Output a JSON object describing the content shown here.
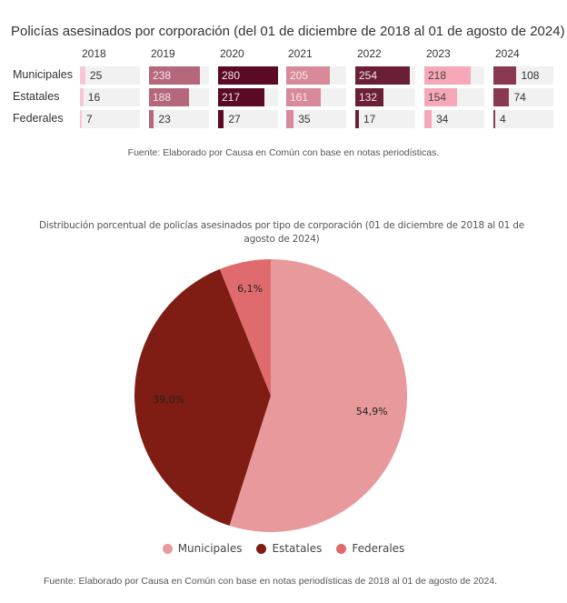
{
  "chart_data": [
    {
      "type": "table",
      "title": "Policías asesinados por corporación (del 01 de diciembre de 2018 al 01 de agosto de 2024)",
      "columns": [
        "2018",
        "2019",
        "2020",
        "2021",
        "2022",
        "2023",
        "2024"
      ],
      "rows": [
        "Municipales",
        "Estatales",
        "Federales"
      ],
      "values": [
        [
          25,
          238,
          280,
          205,
          254,
          218,
          108
        ],
        [
          16,
          188,
          217,
          161,
          132,
          154,
          74
        ],
        [
          7,
          23,
          27,
          35,
          17,
          34,
          4
        ]
      ],
      "column_colors": [
        "#f9c6d6",
        "#b5687c",
        "#5a0a25",
        "#d98a9a",
        "#6b1f36",
        "#f7a8b8",
        "#8a3a50"
      ],
      "value_max": 280,
      "source": "Fuente: Elaborado por Causa en Común con base en notas periodísticas."
    },
    {
      "type": "pie",
      "title": "Distribución porcentual de policías asesinados por tipo de corporación (01 de diciembre de 2018 al 01 de agosto de 2024)",
      "labels": [
        "Municipales",
        "Estatales",
        "Federales"
      ],
      "values": [
        54.9,
        39.0,
        6.1
      ],
      "data_labels": [
        "54,9%",
        "39,0%",
        "6,1%"
      ],
      "colors": [
        "#e8999b",
        "#7f1d14",
        "#e06b6e"
      ],
      "legend_position": "bottom",
      "source": "Fuente: Elaborado por Causa en Común con base en notas periodísticas de 2018 al 01 de agosto de 2024."
    }
  ]
}
